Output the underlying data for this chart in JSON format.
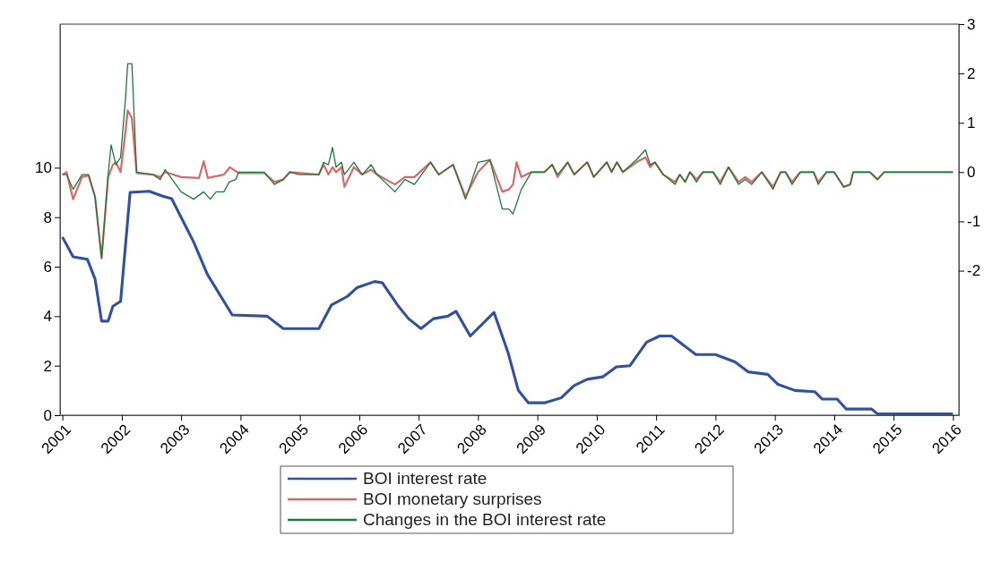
{
  "chart_data": {
    "type": "line",
    "xlim": [
      2000.96,
      2016.1
    ],
    "xticks": [
      2001,
      2002,
      2003,
      2004,
      2005,
      2006,
      2007,
      2008,
      2009,
      2010,
      2011,
      2012,
      2013,
      2014,
      2015,
      2016
    ],
    "ylim": [
      0,
      15.8
    ],
    "yticks": [
      0,
      2,
      4,
      6,
      8,
      10
    ],
    "y2lim": [
      -4.93,
      3
    ],
    "y2ticks": [
      -2,
      -1,
      0,
      1,
      2,
      3
    ],
    "grid": false,
    "legend": "bottom",
    "marker": "none",
    "line_style": "solid",
    "series": [
      {
        "name": "BOI interest rate",
        "color": "#3050a0",
        "x": [
          2001.0,
          2001.18,
          2001.42,
          2001.55,
          2001.66,
          2001.77,
          2001.85,
          2001.98,
          2002.14,
          2002.46,
          2002.69,
          2002.84,
          2003.21,
          2003.44,
          2003.86,
          2004.45,
          2004.72,
          2005.32,
          2005.53,
          2005.8,
          2005.96,
          2006.26,
          2006.39,
          2006.66,
          2006.83,
          2007.04,
          2007.25,
          2007.49,
          2007.63,
          2007.87,
          2008.27,
          2008.51,
          2008.68,
          2008.85,
          2009.12,
          2009.4,
          2009.62,
          2009.84,
          2010.1,
          2010.33,
          2010.56,
          2010.84,
          2011.06,
          2011.26,
          2011.67,
          2012.0,
          2012.33,
          2012.55,
          2012.88,
          2013.05,
          2013.34,
          2013.67,
          2013.8,
          2014.05,
          2014.2,
          2014.63,
          2014.73,
          2016.0
        ],
        "values": [
          7.2,
          6.4,
          6.3,
          5.5,
          3.8,
          3.8,
          4.4,
          4.6,
          9.0,
          9.05,
          8.85,
          8.75,
          7.0,
          5.7,
          4.05,
          4.0,
          3.5,
          3.5,
          4.45,
          4.8,
          5.15,
          5.4,
          5.35,
          4.4,
          3.9,
          3.5,
          3.9,
          4.0,
          4.2,
          3.2,
          4.15,
          2.5,
          1.0,
          0.5,
          0.5,
          0.7,
          1.2,
          1.45,
          1.55,
          1.95,
          2.0,
          2.95,
          3.2,
          3.2,
          2.45,
          2.45,
          2.15,
          1.75,
          1.65,
          1.25,
          1.0,
          0.95,
          0.65,
          0.65,
          0.25,
          0.25,
          0.05,
          0.05
        ]
      },
      {
        "name": "BOI monetary surprises",
        "color": "#d9686a",
        "axis": "y2",
        "x": [
          2001.0,
          2001.07,
          2001.18,
          2001.33,
          2001.44,
          2001.55,
          2001.66,
          2001.77,
          2001.85,
          2001.9,
          2001.98,
          2002.06,
          2002.1,
          2002.17,
          2002.25,
          2002.52,
          2002.65,
          2002.73,
          2003.0,
          2003.3,
          2003.38,
          2003.45,
          2003.72,
          2003.82,
          2003.97,
          2004.4,
          2004.57,
          2004.72,
          2004.83,
          2005.32,
          2005.4,
          2005.48,
          2005.55,
          2005.61,
          2005.7,
          2005.75,
          2005.91,
          2006.05,
          2006.2,
          2006.3,
          2006.6,
          2006.77,
          2006.93,
          2007.2,
          2007.34,
          2007.58,
          2007.79,
          2008.0,
          2008.2,
          2008.41,
          2008.52,
          2008.59,
          2008.65,
          2008.73,
          2008.9,
          2009.12,
          2009.25,
          2009.34,
          2009.51,
          2009.62,
          2009.84,
          2009.95,
          2010.17,
          2010.25,
          2010.34,
          2010.44,
          2010.67,
          2010.82,
          2010.9,
          2010.98,
          2011.12,
          2011.32,
          2011.4,
          2011.49,
          2011.57,
          2011.68,
          2011.79,
          2011.96,
          2012.08,
          2012.22,
          2012.39,
          2012.5,
          2012.61,
          2012.78,
          2012.97,
          2013.1,
          2013.18,
          2013.29,
          2013.43,
          2013.65,
          2013.73,
          2013.87,
          2014.0,
          2014.16,
          2014.27,
          2014.32,
          2014.6,
          2014.73,
          2014.84,
          2016.0
        ],
        "values": [
          -0.05,
          0.0,
          -0.55,
          -0.1,
          -0.07,
          -0.5,
          -1.75,
          -0.1,
          0.15,
          0.2,
          0.0,
          0.8,
          1.25,
          1.1,
          -0.02,
          -0.05,
          -0.1,
          0.0,
          -0.1,
          -0.12,
          0.22,
          -0.12,
          -0.05,
          0.1,
          -0.02,
          -0.02,
          -0.2,
          -0.15,
          0.0,
          -0.05,
          0.15,
          -0.05,
          0.1,
          0.0,
          0.1,
          -0.3,
          0.1,
          -0.05,
          0.05,
          -0.05,
          -0.25,
          -0.1,
          -0.1,
          0.2,
          -0.05,
          0.15,
          -0.5,
          0.0,
          0.25,
          -0.4,
          -0.35,
          -0.25,
          0.2,
          -0.1,
          0.0,
          0.0,
          0.15,
          -0.1,
          0.2,
          -0.05,
          0.2,
          -0.1,
          0.2,
          0.0,
          0.2,
          0.0,
          0.2,
          0.3,
          0.1,
          0.2,
          -0.05,
          -0.2,
          -0.05,
          -0.2,
          0.0,
          -0.15,
          0.0,
          0.0,
          -0.2,
          0.1,
          -0.2,
          -0.1,
          -0.2,
          0.0,
          -0.3,
          0.0,
          0.0,
          -0.2,
          0.0,
          0.0,
          -0.2,
          0.0,
          0.0,
          -0.3,
          -0.25,
          0.0,
          0.0,
          -0.15,
          0.0,
          0.0
        ]
      },
      {
        "name": "Changes in the BOI interest rate",
        "color": "#1f7a3a",
        "axis": "y2",
        "x": [
          2001.0,
          2001.07,
          2001.18,
          2001.33,
          2001.44,
          2001.55,
          2001.66,
          2001.77,
          2001.82,
          2001.9,
          2001.98,
          2002.06,
          2002.1,
          2002.17,
          2002.25,
          2002.52,
          2002.65,
          2002.73,
          2003.0,
          2003.21,
          2003.38,
          2003.49,
          2003.59,
          2003.72,
          2003.81,
          2003.92,
          2003.97,
          2004.4,
          2004.57,
          2004.72,
          2004.83,
          2004.99,
          2005.32,
          2005.4,
          2005.48,
          2005.55,
          2005.61,
          2005.7,
          2005.75,
          2005.91,
          2006.05,
          2006.2,
          2006.3,
          2006.6,
          2006.77,
          2006.93,
          2007.2,
          2007.34,
          2007.58,
          2007.79,
          2008.0,
          2008.2,
          2008.41,
          2008.52,
          2008.59,
          2008.73,
          2008.9,
          2009.12,
          2009.25,
          2009.34,
          2009.51,
          2009.62,
          2009.84,
          2009.95,
          2010.17,
          2010.25,
          2010.34,
          2010.44,
          2010.67,
          2010.82,
          2010.9,
          2010.98,
          2011.12,
          2011.32,
          2011.4,
          2011.49,
          2011.57,
          2011.68,
          2011.79,
          2011.96,
          2012.08,
          2012.22,
          2012.39,
          2012.5,
          2012.61,
          2012.78,
          2012.97,
          2013.1,
          2013.18,
          2013.29,
          2013.43,
          2013.65,
          2013.73,
          2013.87,
          2014.0,
          2014.16,
          2014.27,
          2014.32,
          2014.6,
          2014.73,
          2014.84,
          2016.0
        ],
        "values": [
          -0.05,
          -0.05,
          -0.35,
          -0.05,
          -0.05,
          -0.5,
          -1.75,
          -0.05,
          0.55,
          0.15,
          0.3,
          1.45,
          2.2,
          2.2,
          0.0,
          -0.05,
          -0.15,
          0.05,
          -0.4,
          -0.55,
          -0.4,
          -0.55,
          -0.4,
          -0.4,
          -0.2,
          -0.15,
          0.0,
          0.0,
          -0.25,
          -0.15,
          0.0,
          -0.05,
          -0.05,
          0.2,
          0.15,
          0.5,
          0.1,
          0.2,
          -0.05,
          0.2,
          -0.05,
          0.15,
          -0.05,
          -0.4,
          -0.15,
          -0.25,
          0.2,
          -0.05,
          0.15,
          -0.55,
          0.2,
          0.25,
          -0.75,
          -0.75,
          -0.85,
          -0.35,
          0.0,
          0.0,
          0.15,
          -0.05,
          0.2,
          -0.05,
          0.2,
          -0.1,
          0.2,
          0.0,
          0.2,
          0.0,
          0.25,
          0.45,
          0.15,
          0.2,
          -0.05,
          -0.25,
          -0.05,
          -0.2,
          0.0,
          -0.2,
          0.0,
          0.0,
          -0.25,
          0.1,
          -0.25,
          -0.15,
          -0.25,
          0.0,
          -0.35,
          0.0,
          0.0,
          -0.25,
          0.0,
          0.0,
          -0.25,
          0.0,
          0.0,
          -0.3,
          -0.25,
          0.0,
          0.0,
          -0.15,
          0.0,
          0.0
        ]
      }
    ]
  }
}
